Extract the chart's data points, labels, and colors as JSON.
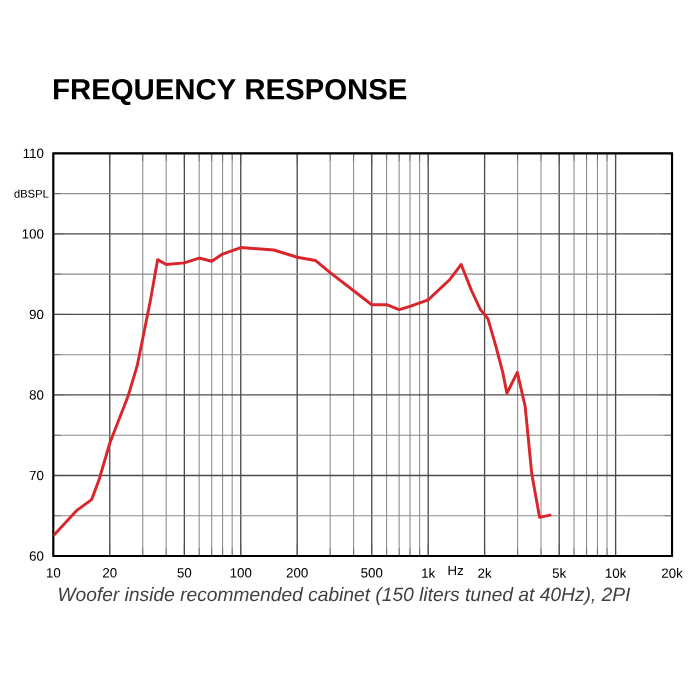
{
  "chart_data": {
    "type": "line",
    "title": "FREQUENCY RESPONSE",
    "xlabel": "Hz",
    "ylabel": "dBSPL",
    "log": "x",
    "grid": true,
    "marker": "none",
    "line_style": "solid",
    "xlim": [
      10,
      20000
    ],
    "ylim": [
      60,
      110
    ],
    "xticks": [
      10,
      20,
      50,
      100,
      200,
      500,
      {
        "value": 1000,
        "label": "1k"
      },
      {
        "value": 2000,
        "label": "2k"
      },
      {
        "value": 5000,
        "label": "5k"
      },
      {
        "value": 10000,
        "label": "10k"
      },
      {
        "value": 20000,
        "label": "20k"
      }
    ],
    "yticks": [
      60,
      70,
      80,
      90,
      100,
      110
    ],
    "series": [
      {
        "color": "#d9252b",
        "x": [
          10,
          13.4,
          16,
          17.5,
          20,
          25,
          28,
          30,
          33,
          36,
          40,
          50,
          60,
          70,
          80,
          100,
          150,
          200,
          250,
          300,
          500,
          600,
          700,
          800,
          1000,
          1300,
          1500,
          1700,
          1900,
          2080,
          2300,
          2500,
          2630,
          2990,
          3290,
          3570,
          3930,
          4540
        ],
        "values": [
          62.5,
          65.7,
          67,
          69.4,
          74,
          79.8,
          83.6,
          87,
          91.8,
          96.8,
          96.2,
          96.4,
          97,
          96.6,
          97.5,
          98.3,
          98,
          97.1,
          96.7,
          95.2,
          91.2,
          91.2,
          90.6,
          91,
          91.8,
          94.3,
          96.2,
          93,
          90.6,
          89.5,
          86,
          82.8,
          80.2,
          82.8,
          78.6,
          70.2,
          64.8,
          65.1
        ]
      }
    ],
    "annotations": [
      "Woofer inside recommended cabinet (150 liters tuned at 40Hz), 2PI"
    ]
  }
}
